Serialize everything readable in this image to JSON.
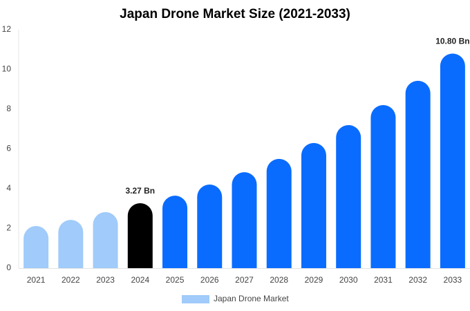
{
  "chart_data": {
    "type": "bar",
    "title": "Japan Drone Market Size (2021-2033)",
    "categories": [
      "2021",
      "2022",
      "2023",
      "2024",
      "2025",
      "2026",
      "2027",
      "2028",
      "2029",
      "2030",
      "2031",
      "2032",
      "2033"
    ],
    "series": [
      {
        "name": "Japan Drone Market",
        "color": "#a0cbfa",
        "values": [
          2.12,
          2.43,
          2.82,
          3.27,
          3.65,
          4.21,
          4.83,
          5.5,
          6.3,
          7.2,
          8.21,
          9.43,
          10.8
        ],
        "value_labels": [
          null,
          null,
          null,
          "3.27 Bn",
          null,
          null,
          null,
          null,
          null,
          null,
          null,
          null,
          "10.80 Bn"
        ],
        "colors": [
          "#a0cbfa",
          "#a0cbfa",
          "#a0cbfa",
          "#000000",
          "#0a6cff",
          "#0a6cff",
          "#0a6cff",
          "#0a6cff",
          "#0a6cff",
          "#0a6cff",
          "#0a6cff",
          "#0a6cff",
          "#0a6cff"
        ]
      }
    ],
    "ylim": [
      0,
      12
    ],
    "yticks": [
      0,
      2,
      4,
      6,
      8,
      10,
      12
    ],
    "grid": false,
    "legend": "bottom"
  }
}
